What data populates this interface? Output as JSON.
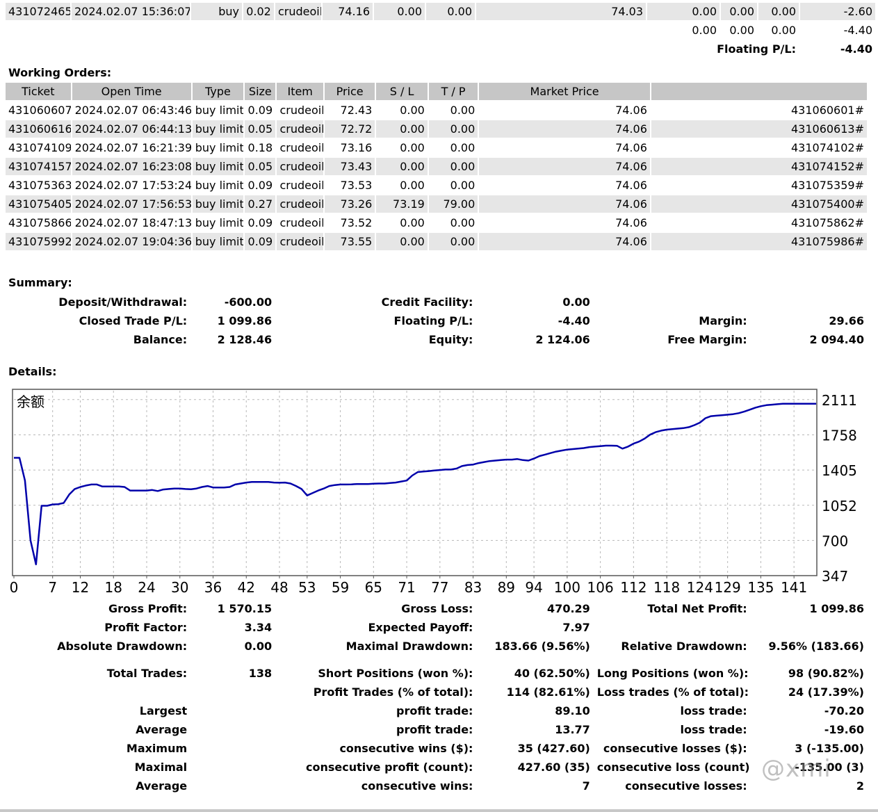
{
  "top_position": {
    "row1": {
      "ticket": "431072465",
      "time": "2024.02.07 15:36:07",
      "type": "buy",
      "size": "0.02",
      "item": "crudeoil",
      "price": "74.16",
      "sl": "0.00",
      "tp": "0.00",
      "market": "74.03",
      "commission": "0.00",
      "taxes": "0.00",
      "swap": "0.00",
      "profit": "-2.60"
    },
    "totals": {
      "commission": "0.00",
      "taxes": "0.00",
      "swap": "0.00",
      "profit": "-4.40"
    },
    "floating_label": "Floating P/L:",
    "floating_value": "-4.40"
  },
  "working_orders": {
    "title": "Working Orders:",
    "headers": {
      "ticket": "Ticket",
      "open_time": "Open Time",
      "type": "Type",
      "size": "Size",
      "item": "Item",
      "price": "Price",
      "sl": "S / L",
      "tp": "T / P",
      "market": "Market Price"
    },
    "rows": [
      {
        "ticket": "431060607",
        "time": "2024.02.07 06:43:46",
        "type": "buy limit",
        "size": "0.09",
        "item": "crudeoil",
        "price": "72.43",
        "sl": "0.00",
        "tp": "0.00",
        "market": "74.06",
        "ref": "431060601#"
      },
      {
        "ticket": "431060616",
        "time": "2024.02.07 06:44:13",
        "type": "buy limit",
        "size": "0.05",
        "item": "crudeoil",
        "price": "72.72",
        "sl": "0.00",
        "tp": "0.00",
        "market": "74.06",
        "ref": "431060613#"
      },
      {
        "ticket": "431074109",
        "time": "2024.02.07 16:21:39",
        "type": "buy limit",
        "size": "0.18",
        "item": "crudeoil",
        "price": "73.16",
        "sl": "0.00",
        "tp": "0.00",
        "market": "74.06",
        "ref": "431074102#"
      },
      {
        "ticket": "431074157",
        "time": "2024.02.07 16:23:08",
        "type": "buy limit",
        "size": "0.05",
        "item": "crudeoil",
        "price": "73.43",
        "sl": "0.00",
        "tp": "0.00",
        "market": "74.06",
        "ref": "431074152#"
      },
      {
        "ticket": "431075363",
        "time": "2024.02.07 17:53:24",
        "type": "buy limit",
        "size": "0.09",
        "item": "crudeoil",
        "price": "73.53",
        "sl": "0.00",
        "tp": "0.00",
        "market": "74.06",
        "ref": "431075359#"
      },
      {
        "ticket": "431075405",
        "time": "2024.02.07 17:56:53",
        "type": "buy limit",
        "size": "0.27",
        "item": "crudeoil",
        "price": "73.26",
        "sl": "73.19",
        "tp": "79.00",
        "market": "74.06",
        "ref": "431075400#"
      },
      {
        "ticket": "431075866",
        "time": "2024.02.07 18:47:13",
        "type": "buy limit",
        "size": "0.09",
        "item": "crudeoil",
        "price": "73.52",
        "sl": "0.00",
        "tp": "0.00",
        "market": "74.06",
        "ref": "431075862#"
      },
      {
        "ticket": "431075992",
        "time": "2024.02.07 19:04:36",
        "type": "buy limit",
        "size": "0.09",
        "item": "crudeoil",
        "price": "73.55",
        "sl": "0.00",
        "tp": "0.00",
        "market": "74.06",
        "ref": "431075986#"
      }
    ]
  },
  "summary": {
    "title": "Summary:",
    "deposit_label": "Deposit/Withdrawal:",
    "deposit_value": "-600.00",
    "credit_label": "Credit Facility:",
    "credit_value": "0.00",
    "closed_label": "Closed Trade P/L:",
    "closed_value": "1 099.86",
    "floating_label": "Floating P/L:",
    "floating_value": "-4.40",
    "margin_label": "Margin:",
    "margin_value": "29.66",
    "balance_label": "Balance:",
    "balance_value": "2 128.46",
    "equity_label": "Equity:",
    "equity_value": "2 124.06",
    "free_margin_label": "Free Margin:",
    "free_margin_value": "2 094.40"
  },
  "details": {
    "title": "Details:"
  },
  "chart_data": {
    "type": "line",
    "title": "余额",
    "x_ticks": [
      0,
      7,
      12,
      18,
      24,
      30,
      36,
      42,
      48,
      53,
      59,
      65,
      71,
      77,
      83,
      89,
      94,
      100,
      106,
      112,
      118,
      124,
      129,
      135,
      141
    ],
    "y_ticks": [
      347,
      700,
      1052,
      1405,
      1758,
      2111
    ],
    "xlim": [
      0,
      145
    ],
    "ylim": [
      347,
      2200
    ],
    "line_color": "#0000aa",
    "grid": true,
    "series": [
      {
        "values": [
          1528,
          1528,
          1300,
          700,
          460,
          1047,
          1047,
          1060,
          1063,
          1075,
          1160,
          1215,
          1235,
          1250,
          1260,
          1260,
          1240,
          1240,
          1240,
          1240,
          1235,
          1200,
          1200,
          1200,
          1200,
          1205,
          1195,
          1210,
          1215,
          1220,
          1220,
          1215,
          1212,
          1220,
          1235,
          1245,
          1230,
          1230,
          1230,
          1235,
          1260,
          1270,
          1280,
          1285,
          1285,
          1285,
          1285,
          1280,
          1278,
          1280,
          1270,
          1245,
          1215,
          1150,
          1175,
          1200,
          1220,
          1245,
          1255,
          1260,
          1260,
          1262,
          1265,
          1265,
          1265,
          1268,
          1270,
          1270,
          1275,
          1280,
          1290,
          1300,
          1350,
          1385,
          1390,
          1395,
          1400,
          1405,
          1410,
          1410,
          1420,
          1445,
          1455,
          1460,
          1475,
          1485,
          1495,
          1500,
          1505,
          1510,
          1510,
          1515,
          1505,
          1500,
          1520,
          1545,
          1560,
          1575,
          1590,
          1600,
          1610,
          1615,
          1620,
          1625,
          1635,
          1640,
          1645,
          1650,
          1650,
          1648,
          1620,
          1640,
          1670,
          1690,
          1720,
          1760,
          1785,
          1800,
          1810,
          1815,
          1820,
          1825,
          1835,
          1855,
          1880,
          1925,
          1945,
          1950,
          1955,
          1960,
          1965,
          1975,
          1990,
          2010,
          2030,
          2045,
          2055,
          2060,
          2065,
          2070,
          2070,
          2070,
          2070,
          2070,
          2070,
          2070
        ]
      }
    ]
  },
  "stats": {
    "gross_profit_label": "Gross Profit:",
    "gross_profit_value": "1 570.15",
    "gross_loss_label": "Gross Loss:",
    "gross_loss_value": "470.29",
    "total_net_label": "Total Net Profit:",
    "total_net_value": "1 099.86",
    "profit_factor_label": "Profit Factor:",
    "profit_factor_value": "3.34",
    "expected_payoff_label": "Expected Payoff:",
    "expected_payoff_value": "7.97",
    "abs_dd_label": "Absolute Drawdown:",
    "abs_dd_value": "0.00",
    "max_dd_label": "Maximal Drawdown:",
    "max_dd_value": "183.66 (9.56%)",
    "rel_dd_label": "Relative Drawdown:",
    "rel_dd_value": "9.56% (183.66)",
    "total_trades_label": "Total Trades:",
    "total_trades_value": "138",
    "short_label": "Short Positions (won %):",
    "short_value": "40 (62.50%)",
    "long_label": "Long Positions (won %):",
    "long_value": "98 (90.82%)",
    "profit_trades_label": "Profit Trades (% of total):",
    "profit_trades_value": "114 (82.61%)",
    "loss_trades_label": "Loss trades (% of total):",
    "loss_trades_value": "24 (17.39%)",
    "largest_label": "Largest",
    "largest_profit_label": "profit trade:",
    "largest_profit_value": "89.10",
    "largest_loss_label": "loss trade:",
    "largest_loss_value": "-70.20",
    "average_label": "Average",
    "average_profit_label": "profit trade:",
    "average_profit_value": "13.77",
    "average_loss_label": "loss trade:",
    "average_loss_value": "-19.60",
    "maximum_label": "Maximum",
    "max_wins_label": "consecutive wins ($):",
    "max_wins_value": "35 (427.60)",
    "max_losses_label": "consecutive losses ($):",
    "max_losses_value": "3 (-135.00)",
    "maximal_label": "Maximal",
    "maximal_profit_label": "consecutive profit (count):",
    "maximal_profit_value": "427.60 (35)",
    "maximal_loss_label": "consecutive loss (count):",
    "maximal_loss_value": "-135.00 (3)",
    "avg2_label": "Average",
    "avg_wins_label": "consecutive wins:",
    "avg_wins_value": "7",
    "avg_losses_label": "consecutive losses:",
    "avg_losses_value": "2"
  },
  "watermark": "@xmi"
}
